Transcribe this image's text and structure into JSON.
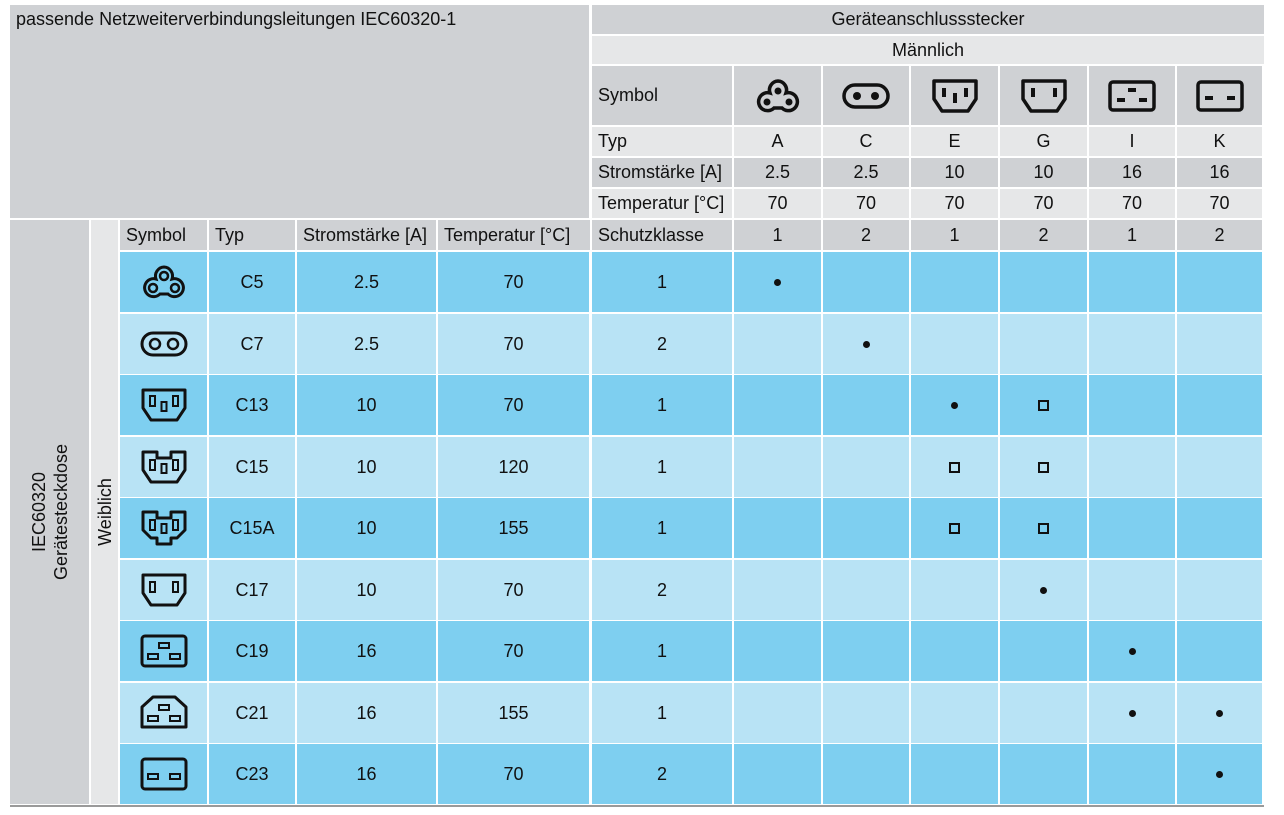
{
  "title": "passende Netzweiterverbindungsleitungen IEC60320-1",
  "top": {
    "group_label": "Geräteanschlussstecker",
    "gender_label": "Männlich",
    "row_labels": {
      "symbol": "Symbol",
      "typ": "Typ",
      "strom": "Stromstärke [A]",
      "temp": "Temperatur [°C]",
      "schutz": "Schutzklasse"
    },
    "columns": [
      {
        "symbol": "icon-a",
        "typ": "A",
        "strom": "2.5",
        "temp": "70",
        "schutz": "1"
      },
      {
        "symbol": "icon-c",
        "typ": "C",
        "strom": "2.5",
        "temp": "70",
        "schutz": "2"
      },
      {
        "symbol": "icon-e",
        "typ": "E",
        "strom": "10",
        "temp": "70",
        "schutz": "1"
      },
      {
        "symbol": "icon-g",
        "typ": "G",
        "strom": "10",
        "temp": "70",
        "schutz": "2"
      },
      {
        "symbol": "icon-i",
        "typ": "I",
        "strom": "16",
        "temp": "70",
        "schutz": "1"
      },
      {
        "symbol": "icon-k",
        "typ": "K",
        "strom": "16",
        "temp": "70",
        "schutz": "2"
      }
    ]
  },
  "left": {
    "group_label_line1": "IEC60320",
    "group_label_line2": "Gerätesteckdose",
    "gender_label": "Weiblich",
    "headers": {
      "symbol": "Symbol",
      "typ": "Typ",
      "strom": "Stromstärke [A]",
      "temp": "Temperatur [°C]"
    }
  },
  "legend_marks": {
    "dot": "•",
    "box": "□"
  },
  "rows": [
    {
      "symbol": "icon-c5",
      "typ": "C5",
      "strom": "2.5",
      "temp": "70",
      "schutz": "1",
      "marks": [
        "dot",
        "",
        "",
        "",
        "",
        ""
      ]
    },
    {
      "symbol": "icon-c7",
      "typ": "C7",
      "strom": "2.5",
      "temp": "70",
      "schutz": "2",
      "marks": [
        "",
        "dot",
        "",
        "",
        "",
        ""
      ]
    },
    {
      "symbol": "icon-c13",
      "typ": "C13",
      "strom": "10",
      "temp": "70",
      "schutz": "1",
      "marks": [
        "",
        "",
        "dot",
        "box",
        "",
        ""
      ]
    },
    {
      "symbol": "icon-c15",
      "typ": "C15",
      "strom": "10",
      "temp": "120",
      "schutz": "1",
      "marks": [
        "",
        "",
        "box",
        "box",
        "",
        ""
      ]
    },
    {
      "symbol": "icon-c15a",
      "typ": "C15A",
      "strom": "10",
      "temp": "155",
      "schutz": "1",
      "marks": [
        "",
        "",
        "box",
        "box",
        "",
        ""
      ]
    },
    {
      "symbol": "icon-c17",
      "typ": "C17",
      "strom": "10",
      "temp": "70",
      "schutz": "2",
      "marks": [
        "",
        "",
        "",
        "dot",
        "",
        ""
      ]
    },
    {
      "symbol": "icon-c19",
      "typ": "C19",
      "strom": "16",
      "temp": "70",
      "schutz": "1",
      "marks": [
        "",
        "",
        "",
        "",
        "dot",
        ""
      ]
    },
    {
      "symbol": "icon-c21",
      "typ": "C21",
      "strom": "16",
      "temp": "155",
      "schutz": "1",
      "marks": [
        "",
        "",
        "",
        "",
        "dot",
        "dot"
      ]
    },
    {
      "symbol": "icon-c23",
      "typ": "C23",
      "strom": "16",
      "temp": "70",
      "schutz": "2",
      "marks": [
        "",
        "",
        "",
        "",
        "",
        "dot"
      ]
    }
  ],
  "colors": {
    "header_gray": "#cfd1d4",
    "light_gray": "#e6e7e8",
    "row_blue_dark": "#7ecff0",
    "row_blue_light": "#b8e3f5"
  }
}
